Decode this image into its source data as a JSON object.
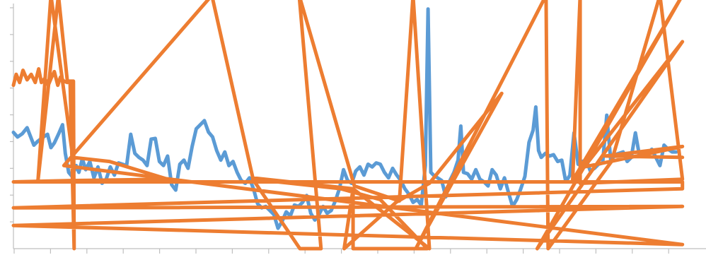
{
  "chart_data": {
    "type": "line",
    "title": "",
    "xlabel": "",
    "ylabel": "",
    "x_tick_count": 19,
    "y_tick_count": 9,
    "xlim": [
      0,
      1
    ],
    "ylim": [
      0,
      9
    ],
    "grid": false,
    "legend": "none",
    "series": [
      {
        "color": "#5b9bd5",
        "points": [
          [
            0.0,
            4.27
          ],
          [
            0.006,
            4.1
          ],
          [
            0.013,
            4.22
          ],
          [
            0.02,
            4.44
          ],
          [
            0.025,
            4.12
          ],
          [
            0.03,
            3.8
          ],
          [
            0.036,
            3.95
          ],
          [
            0.044,
            4.1
          ],
          [
            0.05,
            4.2
          ],
          [
            0.055,
            3.71
          ],
          [
            0.06,
            3.88
          ],
          [
            0.066,
            4.2
          ],
          [
            0.072,
            4.55
          ],
          [
            0.076,
            3.5
          ],
          [
            0.081,
            2.8
          ],
          [
            0.086,
            2.65
          ],
          [
            0.092,
            3.05
          ],
          [
            0.096,
            2.8
          ],
          [
            0.101,
            3.3
          ],
          [
            0.106,
            2.9
          ],
          [
            0.112,
            3.2
          ],
          [
            0.118,
            2.6
          ],
          [
            0.124,
            3.0
          ],
          [
            0.13,
            2.4
          ],
          [
            0.136,
            2.55
          ],
          [
            0.142,
            3.0
          ],
          [
            0.148,
            2.7
          ],
          [
            0.154,
            3.15
          ],
          [
            0.16,
            3.1
          ],
          [
            0.166,
            3.05
          ],
          [
            0.172,
            4.2
          ],
          [
            0.178,
            3.5
          ],
          [
            0.184,
            3.35
          ],
          [
            0.19,
            3.25
          ],
          [
            0.196,
            3.05
          ],
          [
            0.202,
            4.02
          ],
          [
            0.208,
            4.05
          ],
          [
            0.214,
            3.2
          ],
          [
            0.22,
            3.05
          ],
          [
            0.226,
            3.4
          ],
          [
            0.232,
            2.35
          ],
          [
            0.238,
            2.15
          ],
          [
            0.244,
            3.1
          ],
          [
            0.25,
            3.25
          ],
          [
            0.256,
            2.95
          ],
          [
            0.262,
            3.75
          ],
          [
            0.268,
            4.4
          ],
          [
            0.274,
            4.55
          ],
          [
            0.28,
            4.7
          ],
          [
            0.286,
            4.28
          ],
          [
            0.292,
            4.1
          ],
          [
            0.298,
            3.6
          ],
          [
            0.304,
            3.25
          ],
          [
            0.31,
            3.55
          ],
          [
            0.316,
            3.05
          ],
          [
            0.322,
            3.2
          ],
          [
            0.328,
            2.8
          ],
          [
            0.334,
            2.5
          ],
          [
            0.34,
            2.4
          ],
          [
            0.346,
            2.6
          ],
          [
            0.352,
            2.2
          ],
          [
            0.358,
            1.65
          ],
          [
            0.364,
            1.5
          ],
          [
            0.37,
            1.55
          ],
          [
            0.376,
            1.4
          ],
          [
            0.382,
            1.25
          ],
          [
            0.388,
            0.75
          ],
          [
            0.394,
            1.0
          ],
          [
            0.4,
            1.35
          ],
          [
            0.406,
            1.2
          ],
          [
            0.412,
            1.6
          ],
          [
            0.418,
            1.55
          ],
          [
            0.424,
            1.7
          ],
          [
            0.43,
            1.95
          ],
          [
            0.436,
            1.3
          ],
          [
            0.442,
            1.05
          ],
          [
            0.448,
            1.25
          ],
          [
            0.454,
            1.55
          ],
          [
            0.46,
            1.3
          ],
          [
            0.466,
            1.4
          ],
          [
            0.472,
            1.75
          ],
          [
            0.478,
            2.2
          ],
          [
            0.484,
            2.9
          ],
          [
            0.49,
            2.5
          ],
          [
            0.496,
            2.4
          ],
          [
            0.502,
            2.85
          ],
          [
            0.508,
            3.0
          ],
          [
            0.514,
            2.7
          ],
          [
            0.52,
            3.1
          ],
          [
            0.526,
            3.0
          ],
          [
            0.532,
            3.15
          ],
          [
            0.538,
            3.1
          ],
          [
            0.544,
            2.8
          ],
          [
            0.55,
            2.6
          ],
          [
            0.556,
            2.95
          ],
          [
            0.562,
            2.7
          ],
          [
            0.568,
            2.5
          ],
          [
            0.574,
            2.2
          ],
          [
            0.58,
            2.0
          ],
          [
            0.586,
            1.7
          ],
          [
            0.592,
            1.8
          ],
          [
            0.598,
            1.6
          ],
          [
            0.604,
            3.05
          ],
          [
            0.608,
            8.8
          ],
          [
            0.612,
            2.8
          ],
          [
            0.616,
            2.7
          ],
          [
            0.622,
            2.6
          ],
          [
            0.628,
            2.5
          ],
          [
            0.634,
            1.9
          ],
          [
            0.64,
            2.5
          ],
          [
            0.646,
            2.8
          ],
          [
            0.652,
            3.25
          ],
          [
            0.656,
            4.5
          ],
          [
            0.66,
            2.8
          ],
          [
            0.666,
            2.75
          ],
          [
            0.672,
            2.55
          ],
          [
            0.678,
            2.9
          ],
          [
            0.684,
            2.55
          ],
          [
            0.69,
            2.45
          ],
          [
            0.696,
            2.3
          ],
          [
            0.702,
            2.9
          ],
          [
            0.708,
            2.7
          ],
          [
            0.714,
            2.2
          ],
          [
            0.72,
            2.6
          ],
          [
            0.726,
            2.05
          ],
          [
            0.732,
            1.55
          ],
          [
            0.738,
            1.8
          ],
          [
            0.744,
            2.2
          ],
          [
            0.75,
            2.65
          ],
          [
            0.756,
            3.9
          ],
          [
            0.762,
            4.35
          ],
          [
            0.766,
            5.2
          ],
          [
            0.77,
            3.6
          ],
          [
            0.774,
            3.35
          ],
          [
            0.78,
            3.5
          ],
          [
            0.786,
            3.4
          ],
          [
            0.792,
            3.45
          ],
          [
            0.798,
            3.2
          ],
          [
            0.804,
            3.25
          ],
          [
            0.81,
            2.45
          ],
          [
            0.816,
            2.7
          ],
          [
            0.822,
            4.25
          ],
          [
            0.828,
            3.1
          ],
          [
            0.834,
            3.2
          ],
          [
            0.84,
            3.25
          ],
          [
            0.846,
            2.85
          ],
          [
            0.852,
            2.95
          ],
          [
            0.858,
            3.1
          ],
          [
            0.864,
            3.15
          ],
          [
            0.87,
            4.9
          ],
          [
            0.876,
            3.2
          ],
          [
            0.882,
            3.45
          ],
          [
            0.888,
            3.5
          ],
          [
            0.894,
            3.55
          ],
          [
            0.9,
            3.2
          ],
          [
            0.906,
            3.35
          ],
          [
            0.912,
            4.25
          ],
          [
            0.918,
            3.4
          ],
          [
            0.924,
            3.5
          ],
          [
            0.93,
            3.45
          ],
          [
            0.936,
            3.65
          ],
          [
            0.942,
            3.35
          ],
          [
            0.948,
            3.05
          ],
          [
            0.954,
            3.8
          ],
          [
            0.96,
            3.65
          ],
          [
            0.966,
            3.55
          ],
          [
            0.972,
            3.55
          ]
        ]
      },
      {
        "color": "#ed7d31",
        "points": [
          [
            0.0,
            6.0
          ],
          [
            0.004,
            6.4
          ],
          [
            0.009,
            6.1
          ],
          [
            0.014,
            6.55
          ],
          [
            0.02,
            6.2
          ],
          [
            0.026,
            6.4
          ],
          [
            0.032,
            6.1
          ],
          [
            0.037,
            6.6
          ],
          [
            0.041,
            6.1
          ],
          [
            0.046,
            6.25
          ],
          [
            0.051,
            6.0
          ],
          [
            0.056,
            6.3
          ],
          [
            0.06,
            6.5
          ],
          [
            0.065,
            6.0
          ],
          [
            0.069,
            6.3
          ],
          [
            0.074,
            6.15
          ],
          [
            0.079,
            6.1
          ],
          [
            0.083,
            6.15
          ],
          [
            0.089,
            0.0
          ],
          [
            0.088,
            6.15
          ],
          [
            0.079,
            6.15
          ],
          [
            0.066,
            9.3
          ],
          [
            0.036,
            2.5
          ],
          [
            0.055,
            9.3
          ],
          [
            0.087,
            3.35
          ],
          [
            0.141,
            3.2
          ],
          [
            0.226,
            2.55
          ],
          [
            0.083,
            2.5
          ],
          [
            0.0,
            2.45
          ],
          [
            0.981,
            2.45
          ],
          [
            0.981,
            2.2
          ],
          [
            0.0,
            1.5
          ],
          [
            0.981,
            1.55
          ],
          [
            0.0,
            0.85
          ],
          [
            0.981,
            0.15
          ],
          [
            0.074,
            3.05
          ],
          [
            0.291,
            9.3
          ],
          [
            0.351,
            2.6
          ],
          [
            0.498,
            2.2
          ],
          [
            0.61,
            0.0
          ],
          [
            0.586,
            9.3
          ],
          [
            0.566,
            1.75
          ],
          [
            0.5,
            2.3
          ],
          [
            0.419,
            9.3
          ],
          [
            0.451,
            0.0
          ],
          [
            0.42,
            0.0
          ],
          [
            0.351,
            2.55
          ],
          [
            0.48,
            2.2
          ],
          [
            0.538,
            1.8
          ],
          [
            0.607,
            0.0
          ],
          [
            0.498,
            0.0
          ],
          [
            0.498,
            2.2
          ],
          [
            0.485,
            0.0
          ],
          [
            0.561,
            1.7
          ],
          [
            0.61,
            2.4
          ],
          [
            0.716,
            5.7
          ],
          [
            0.59,
            0.0
          ],
          [
            0.781,
            9.3
          ],
          [
            0.784,
            0.0
          ],
          [
            0.877,
            3.2
          ],
          [
            0.948,
            9.3
          ],
          [
            0.981,
            2.55
          ],
          [
            0.831,
            2.4
          ],
          [
            0.831,
            9.3
          ],
          [
            0.82,
            2.5
          ],
          [
            0.981,
            9.3
          ],
          [
            0.768,
            0.0
          ],
          [
            0.981,
            7.6
          ],
          [
            0.837,
            3.0
          ],
          [
            0.981,
            3.75
          ],
          [
            0.868,
            3.4
          ],
          [
            0.981,
            3.35
          ]
        ]
      }
    ]
  }
}
